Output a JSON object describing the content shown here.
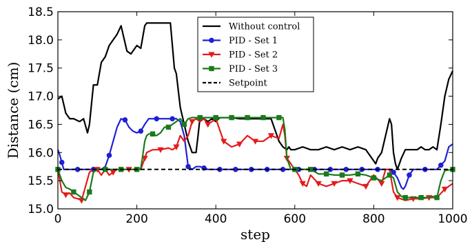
{
  "chart_data": {
    "type": "line",
    "title": "",
    "xlabel": "step",
    "ylabel": "Distance (cm)",
    "xlim": [
      0,
      1000
    ],
    "ylim": [
      15.0,
      18.5
    ],
    "xticks": [
      0,
      200,
      400,
      600,
      800,
      1000
    ],
    "yticks": [
      15.0,
      15.5,
      16.0,
      16.5,
      17.0,
      17.5,
      18.0,
      18.5
    ],
    "xtick_labels": [
      "0",
      "200",
      "400",
      "600",
      "800",
      "1000"
    ],
    "ytick_labels": [
      "15.0",
      "15.5",
      "16.0",
      "16.5",
      "17.0",
      "17.5",
      "18.0",
      "18.5"
    ],
    "grid": false,
    "legend_position": "top-center",
    "series": [
      {
        "name": "Without control",
        "color": "#000000",
        "dash": "solid",
        "marker": "none",
        "x": [
          0,
          10,
          20,
          30,
          40,
          55,
          65,
          75,
          80,
          90,
          100,
          110,
          120,
          130,
          140,
          150,
          160,
          170,
          175,
          185,
          200,
          210,
          220,
          225,
          240,
          260,
          275,
          285,
          290,
          295,
          300,
          310,
          320,
          330,
          340,
          350,
          355,
          360,
          370,
          380,
          390,
          400,
          410,
          420,
          440,
          460,
          480,
          500,
          520,
          540,
          550,
          555,
          560,
          570,
          580,
          585,
          590,
          600,
          620,
          640,
          660,
          680,
          700,
          720,
          740,
          760,
          780,
          800,
          805,
          810,
          820,
          830,
          840,
          845,
          850,
          855,
          860,
          870,
          880,
          890,
          900,
          910,
          920,
          930,
          940,
          950,
          960,
          970,
          980,
          990,
          1000
        ],
        "y": [
          16.95,
          17.0,
          16.7,
          16.6,
          16.6,
          16.55,
          16.6,
          16.35,
          16.5,
          17.2,
          17.2,
          17.6,
          17.7,
          17.9,
          18.0,
          18.1,
          18.25,
          17.95,
          17.8,
          17.75,
          17.9,
          17.85,
          18.25,
          18.3,
          18.3,
          18.3,
          18.3,
          18.3,
          17.9,
          17.5,
          17.4,
          16.8,
          16.5,
          16.2,
          16.0,
          16.0,
          16.3,
          16.62,
          16.6,
          16.55,
          16.6,
          16.55,
          16.62,
          16.62,
          16.62,
          16.6,
          16.6,
          16.6,
          16.6,
          16.6,
          16.4,
          16.3,
          16.2,
          16.1,
          16.05,
          16.1,
          16.05,
          16.05,
          16.1,
          16.05,
          16.05,
          16.1,
          16.05,
          16.1,
          16.05,
          16.1,
          16.05,
          15.85,
          15.8,
          15.9,
          16.0,
          16.3,
          16.6,
          16.5,
          16.0,
          15.8,
          15.7,
          15.9,
          16.05,
          16.05,
          16.05,
          16.05,
          16.1,
          16.05,
          16.05,
          16.1,
          16.05,
          16.5,
          17.0,
          17.3,
          17.45
        ]
      },
      {
        "name": "PID - Set 1",
        "color": "#1f1fd8",
        "dash": "solid",
        "marker": "circle",
        "x": [
          0,
          5,
          15,
          30,
          50,
          70,
          90,
          100,
          110,
          120,
          130,
          140,
          150,
          160,
          170,
          180,
          190,
          200,
          210,
          220,
          230,
          240,
          260,
          280,
          290,
          300,
          310,
          320,
          330,
          340,
          350,
          360,
          380,
          400,
          440,
          500,
          550,
          580,
          600,
          640,
          700,
          760,
          800,
          820,
          840,
          850,
          860,
          870,
          875,
          880,
          890,
          900,
          920,
          960,
          980,
          990,
          1000
        ],
        "y": [
          16.05,
          15.95,
          15.7,
          15.7,
          15.7,
          15.7,
          15.7,
          15.7,
          15.7,
          15.75,
          15.95,
          16.2,
          16.45,
          16.6,
          16.58,
          16.45,
          16.38,
          16.35,
          16.38,
          16.5,
          16.6,
          16.6,
          16.6,
          16.6,
          16.6,
          16.6,
          16.55,
          16.3,
          15.75,
          15.7,
          15.75,
          15.75,
          15.7,
          15.7,
          15.7,
          15.7,
          15.7,
          15.7,
          15.7,
          15.7,
          15.7,
          15.7,
          15.7,
          15.7,
          15.7,
          15.65,
          15.55,
          15.38,
          15.35,
          15.4,
          15.6,
          15.7,
          15.7,
          15.7,
          15.85,
          16.1,
          16.15
        ]
      },
      {
        "name": "PID - Set 2",
        "color": "#e41a1c",
        "dash": "solid",
        "marker": "triangle-down",
        "x": [
          0,
          10,
          20,
          30,
          40,
          50,
          60,
          70,
          80,
          90,
          100,
          110,
          120,
          130,
          140,
          150,
          160,
          170,
          180,
          190,
          200,
          210,
          220,
          225,
          240,
          260,
          280,
          290,
          300,
          310,
          320,
          330,
          340,
          350,
          360,
          370,
          380,
          390,
          400,
          410,
          420,
          440,
          460,
          480,
          500,
          520,
          540,
          560,
          570,
          575,
          580,
          590,
          600,
          610,
          620,
          630,
          640,
          660,
          680,
          700,
          720,
          740,
          760,
          780,
          800,
          820,
          830,
          840,
          850,
          860,
          880,
          900,
          920,
          940,
          960,
          980,
          1000
        ],
        "y": [
          15.7,
          15.3,
          15.25,
          15.28,
          15.2,
          15.18,
          15.15,
          15.4,
          15.65,
          15.7,
          15.7,
          15.6,
          15.7,
          15.6,
          15.65,
          15.7,
          15.7,
          15.7,
          15.7,
          15.7,
          15.7,
          15.7,
          15.9,
          16.0,
          16.05,
          16.05,
          16.08,
          16.05,
          16.1,
          16.3,
          16.2,
          16.3,
          16.55,
          16.6,
          16.55,
          16.6,
          16.5,
          16.55,
          16.6,
          16.4,
          16.2,
          16.1,
          16.15,
          16.3,
          16.2,
          16.2,
          16.3,
          16.25,
          16.5,
          16.3,
          15.9,
          15.8,
          15.7,
          15.6,
          15.45,
          15.4,
          15.6,
          15.45,
          15.4,
          15.45,
          15.5,
          15.5,
          15.45,
          15.4,
          15.6,
          15.45,
          15.7,
          15.7,
          15.3,
          15.2,
          15.15,
          15.18,
          15.18,
          15.2,
          15.2,
          15.35,
          15.45
        ]
      },
      {
        "name": "PID - Set 3",
        "color": "#1b7a1b",
        "dash": "solid",
        "marker": "square",
        "x": [
          0,
          10,
          20,
          30,
          40,
          50,
          60,
          70,
          80,
          90,
          100,
          120,
          140,
          160,
          180,
          200,
          210,
          215,
          220,
          225,
          230,
          240,
          250,
          260,
          270,
          280,
          290,
          300,
          310,
          320,
          330,
          340,
          350,
          400,
          450,
          500,
          540,
          560,
          570,
          575,
          580,
          590,
          600,
          620,
          640,
          660,
          680,
          700,
          720,
          740,
          760,
          780,
          800,
          820,
          840,
          850,
          860,
          870,
          880,
          900,
          920,
          940,
          950,
          960,
          970,
          980,
          1000
        ],
        "y": [
          15.7,
          15.5,
          15.38,
          15.35,
          15.3,
          15.25,
          15.2,
          15.15,
          15.3,
          15.65,
          15.7,
          15.7,
          15.7,
          15.7,
          15.7,
          15.7,
          15.72,
          15.95,
          16.2,
          16.3,
          16.33,
          16.33,
          16.3,
          16.35,
          16.45,
          16.45,
          16.5,
          16.55,
          16.6,
          16.5,
          16.6,
          16.62,
          16.62,
          16.62,
          16.62,
          16.62,
          16.62,
          16.62,
          16.62,
          16.4,
          15.9,
          15.7,
          15.7,
          15.7,
          15.7,
          15.62,
          15.62,
          15.6,
          15.6,
          15.6,
          15.62,
          15.6,
          15.55,
          15.5,
          15.6,
          15.55,
          15.3,
          15.22,
          15.2,
          15.2,
          15.2,
          15.2,
          15.22,
          15.2,
          15.5,
          15.68,
          15.7
        ]
      },
      {
        "name": "Setpoint",
        "color": "#000000",
        "dash": "dashed",
        "marker": "none",
        "x": [
          0,
          1000
        ],
        "y": [
          15.7,
          15.7
        ]
      }
    ]
  }
}
